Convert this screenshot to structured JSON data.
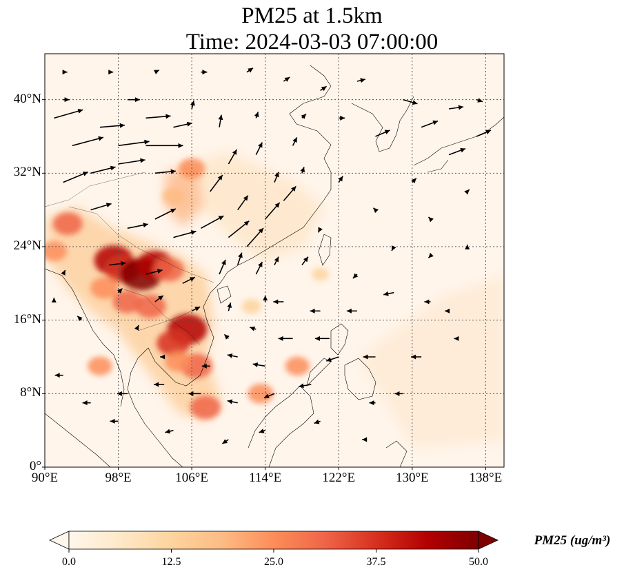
{
  "title": {
    "line1": "PM25 at 1.5km",
    "line2": "Time: 2024-03-03 07:00:00"
  },
  "map": {
    "lon_range": [
      90,
      140
    ],
    "lat_range": [
      0,
      45
    ],
    "lat_ticks": [
      {
        "value": 0,
        "label": "0°"
      },
      {
        "value": 8,
        "label": "8°N"
      },
      {
        "value": 16,
        "label": "16°N"
      },
      {
        "value": 24,
        "label": "24°N"
      },
      {
        "value": 32,
        "label": "32°N"
      },
      {
        "value": 40,
        "label": "40°N"
      }
    ],
    "lon_ticks": [
      {
        "value": 90,
        "label": "90°E"
      },
      {
        "value": 98,
        "label": "98°E"
      },
      {
        "value": 106,
        "label": "106°E"
      },
      {
        "value": 114,
        "label": "114°E"
      },
      {
        "value": 122,
        "label": "122°E"
      },
      {
        "value": 130,
        "label": "130°E"
      },
      {
        "value": 138,
        "label": "138°E"
      }
    ],
    "gridlines": "dotted",
    "background_color": "#fff5eb",
    "coastline_color": "#000000"
  },
  "colorbar": {
    "label": "PM25 (ug/m³)",
    "min": 0,
    "max": 50,
    "extend": "both",
    "colormap": "OrRd",
    "ticks": [
      "0.0",
      "12.5",
      "25.0",
      "37.5",
      "50.0"
    ],
    "colors": [
      "#fff7ec",
      "#fee8c8",
      "#fdd49e",
      "#fdbb84",
      "#fc8d59",
      "#ef6548",
      "#d7301f",
      "#b30000",
      "#7f0000"
    ]
  },
  "hotspots": [
    {
      "lon": 92.5,
      "lat": 26.5,
      "value": 30
    },
    {
      "lon": 97.5,
      "lat": 22.5,
      "value": 45
    },
    {
      "lon": 98.5,
      "lat": 21.5,
      "value": 38
    },
    {
      "lon": 100.5,
      "lat": 21.0,
      "value": 50
    },
    {
      "lon": 102.0,
      "lat": 22.0,
      "value": 42
    },
    {
      "lon": 103.5,
      "lat": 21.5,
      "value": 32
    },
    {
      "lon": 96.5,
      "lat": 19.5,
      "value": 28
    },
    {
      "lon": 99.0,
      "lat": 18.0,
      "value": 30
    },
    {
      "lon": 101.5,
      "lat": 17.5,
      "value": 32
    },
    {
      "lon": 105.5,
      "lat": 15.0,
      "value": 46
    },
    {
      "lon": 104.0,
      "lat": 13.5,
      "value": 36
    },
    {
      "lon": 106.5,
      "lat": 11.0,
      "value": 34
    },
    {
      "lon": 104.5,
      "lat": 11.5,
      "value": 25
    },
    {
      "lon": 107.5,
      "lat": 6.5,
      "value": 32
    },
    {
      "lon": 113.5,
      "lat": 8.0,
      "value": 24
    },
    {
      "lon": 117.5,
      "lat": 11.0,
      "value": 22
    },
    {
      "lon": 106.0,
      "lat": 32.5,
      "value": 25
    },
    {
      "lon": 104.0,
      "lat": 29.5,
      "value": 18
    },
    {
      "lon": 91.0,
      "lat": 23.5,
      "value": 24
    },
    {
      "lon": 96.0,
      "lat": 11.0,
      "value": 22
    },
    {
      "lon": 112.5,
      "lat": 17.5,
      "value": 14
    },
    {
      "lon": 120.0,
      "lat": 21.0,
      "value": 10
    }
  ],
  "wind_vectors": [
    {
      "lon": 91,
      "lat": 38,
      "u": 14,
      "v": 4
    },
    {
      "lon": 93,
      "lat": 35,
      "u": 15,
      "v": 4
    },
    {
      "lon": 96,
      "lat": 37,
      "u": 12,
      "v": 1
    },
    {
      "lon": 98,
      "lat": 35,
      "u": 15,
      "v": 2
    },
    {
      "lon": 101,
      "lat": 35,
      "u": 18,
      "v": 0
    },
    {
      "lon": 101,
      "lat": 38,
      "u": 12,
      "v": 1
    },
    {
      "lon": 104,
      "lat": 37,
      "u": 9,
      "v": 2
    },
    {
      "lon": 92,
      "lat": 31,
      "u": 12,
      "v": 5
    },
    {
      "lon": 95,
      "lat": 32,
      "u": 12,
      "v": 3
    },
    {
      "lon": 98,
      "lat": 33,
      "u": 13,
      "v": 2
    },
    {
      "lon": 102,
      "lat": 32,
      "u": 10,
      "v": 1
    },
    {
      "lon": 95,
      "lat": 28,
      "u": 10,
      "v": 3
    },
    {
      "lon": 99,
      "lat": 26,
      "u": 10,
      "v": 2
    },
    {
      "lon": 102,
      "lat": 27,
      "u": 10,
      "v": 5
    },
    {
      "lon": 104,
      "lat": 25,
      "u": 11,
      "v": 3
    },
    {
      "lon": 107,
      "lat": 26,
      "u": 11,
      "v": 6
    },
    {
      "lon": 110,
      "lat": 25,
      "u": 10,
      "v": 8
    },
    {
      "lon": 112,
      "lat": 24,
      "u": 8,
      "v": 9
    },
    {
      "lon": 114,
      "lat": 27,
      "u": 7,
      "v": 8
    },
    {
      "lon": 116,
      "lat": 29,
      "u": 6,
      "v": 7
    },
    {
      "lon": 108,
      "lat": 30,
      "u": 6,
      "v": 8
    },
    {
      "lon": 110,
      "lat": 33,
      "u": 4,
      "v": 7
    },
    {
      "lon": 113,
      "lat": 34,
      "u": 3,
      "v": 6
    },
    {
      "lon": 117,
      "lat": 35,
      "u": 2,
      "v": 4
    },
    {
      "lon": 109,
      "lat": 37,
      "u": 1,
      "v": 6
    },
    {
      "lon": 97,
      "lat": 22,
      "u": 8,
      "v": 1
    },
    {
      "lon": 101,
      "lat": 21,
      "u": 8,
      "v": 2
    },
    {
      "lon": 105,
      "lat": 20,
      "u": 6,
      "v": 3
    },
    {
      "lon": 109,
      "lat": 21,
      "u": 3,
      "v": 7
    },
    {
      "lon": 111,
      "lat": 22,
      "u": 2,
      "v": 6
    },
    {
      "lon": 113,
      "lat": 21,
      "u": 3,
      "v": 6
    },
    {
      "lon": 106,
      "lat": 17,
      "u": 4,
      "v": 2
    },
    {
      "lon": 110,
      "lat": 17,
      "u": 1,
      "v": 4
    },
    {
      "lon": 94,
      "lat": 16,
      "u": -2,
      "v": 2
    },
    {
      "lon": 100,
      "lat": 15,
      "u": 1,
      "v": 2
    },
    {
      "lon": 103,
      "lat": 12,
      "u": -2,
      "v": 0
    },
    {
      "lon": 108,
      "lat": 11,
      "u": -4,
      "v": 0
    },
    {
      "lon": 111,
      "lat": 12,
      "u": -5,
      "v": 1
    },
    {
      "lon": 114,
      "lat": 11,
      "u": -6,
      "v": 1
    },
    {
      "lon": 117,
      "lat": 14,
      "u": -7,
      "v": 0
    },
    {
      "lon": 121,
      "lat": 14,
      "u": -7,
      "v": 0
    },
    {
      "lon": 122,
      "lat": 12,
      "u": -6,
      "v": -2
    },
    {
      "lon": 119,
      "lat": 9,
      "u": -6,
      "v": -1
    },
    {
      "lon": 115,
      "lat": 8,
      "u": -5,
      "v": -2
    },
    {
      "lon": 111,
      "lat": 7,
      "u": -5,
      "v": 1
    },
    {
      "lon": 107,
      "lat": 8,
      "u": -6,
      "v": 0
    },
    {
      "lon": 103,
      "lat": 9,
      "u": -5,
      "v": 0
    },
    {
      "lon": 99,
      "lat": 8,
      "u": -5,
      "v": 0
    },
    {
      "lon": 95,
      "lat": 7,
      "u": -4,
      "v": 0
    },
    {
      "lon": 92,
      "lat": 10,
      "u": -4,
      "v": 0
    },
    {
      "lon": 98,
      "lat": 5,
      "u": -4,
      "v": 0
    },
    {
      "lon": 104,
      "lat": 4,
      "u": -4,
      "v": -1
    },
    {
      "lon": 110,
      "lat": 3,
      "u": -3,
      "v": -2
    },
    {
      "lon": 114,
      "lat": 4,
      "u": -3,
      "v": -1
    },
    {
      "lon": 120,
      "lat": 5,
      "u": -3,
      "v": -1
    },
    {
      "lon": 125,
      "lat": 3,
      "u": -2,
      "v": 0
    },
    {
      "lon": 129,
      "lat": 8,
      "u": -4,
      "v": 0
    },
    {
      "lon": 126,
      "lat": 12,
      "u": -6,
      "v": 0
    },
    {
      "lon": 124,
      "lat": 17,
      "u": -5,
      "v": 0
    },
    {
      "lon": 120,
      "lat": 17,
      "u": -5,
      "v": 0
    },
    {
      "lon": 116,
      "lat": 18,
      "u": -5,
      "v": 0
    },
    {
      "lon": 128,
      "lat": 19,
      "u": -5,
      "v": -1
    },
    {
      "lon": 132,
      "lat": 18,
      "u": -3,
      "v": 0
    },
    {
      "lon": 134,
      "lat": 17,
      "u": -2,
      "v": 0
    },
    {
      "lon": 124,
      "lat": 21,
      "u": -2,
      "v": -2
    },
    {
      "lon": 128,
      "lat": 24,
      "u": -1,
      "v": -2
    },
    {
      "lon": 132,
      "lat": 27,
      "u": -1,
      "v": 1
    },
    {
      "lon": 136,
      "lat": 30,
      "u": 1,
      "v": 1
    },
    {
      "lon": 130,
      "lat": 31,
      "u": 2,
      "v": 2
    },
    {
      "lon": 122,
      "lat": 31,
      "u": 2,
      "v": 3
    },
    {
      "lon": 120,
      "lat": 26,
      "u": -1,
      "v": -2
    },
    {
      "lon": 126,
      "lat": 28,
      "u": -1,
      "v": 1
    },
    {
      "lon": 126,
      "lat": 36,
      "u": 7,
      "v": 3
    },
    {
      "lon": 131,
      "lat": 37,
      "u": 8,
      "v": 3
    },
    {
      "lon": 134,
      "lat": 34,
      "u": 8,
      "v": 3
    },
    {
      "lon": 137,
      "lat": 36,
      "u": 7,
      "v": 3
    },
    {
      "lon": 129,
      "lat": 40,
      "u": 7,
      "v": -2
    },
    {
      "lon": 134,
      "lat": 39,
      "u": 7,
      "v": 1
    },
    {
      "lon": 137,
      "lat": 40,
      "u": 3,
      "v": -1
    },
    {
      "lon": 124,
      "lat": 42,
      "u": 4,
      "v": 1
    },
    {
      "lon": 120,
      "lat": 41,
      "u": 3,
      "v": 2
    },
    {
      "lon": 116,
      "lat": 42,
      "u": 3,
      "v": 2
    },
    {
      "lon": 112,
      "lat": 43,
      "u": 3,
      "v": 2
    },
    {
      "lon": 107,
      "lat": 43,
      "u": 3,
      "v": 0
    },
    {
      "lon": 102,
      "lat": 43,
      "u": 2,
      "v": 1
    },
    {
      "lon": 97,
      "lat": 43,
      "u": 2,
      "v": 0
    },
    {
      "lon": 92,
      "lat": 43,
      "u": 2,
      "v": 0
    },
    {
      "lon": 118,
      "lat": 38,
      "u": 2,
      "v": 2
    },
    {
      "lon": 122,
      "lat": 38,
      "u": 3,
      "v": 0
    },
    {
      "lon": 99,
      "lat": 40,
      "u": 6,
      "v": 0
    },
    {
      "lon": 92,
      "lat": 40,
      "u": 3,
      "v": 0
    },
    {
      "lon": 113,
      "lat": 38,
      "u": 1,
      "v": 3
    },
    {
      "lon": 106,
      "lat": 39,
      "u": 1,
      "v": 4
    },
    {
      "lon": 118,
      "lat": 32,
      "u": 1,
      "v": 3
    },
    {
      "lon": 115,
      "lat": 31,
      "u": 2,
      "v": 5
    },
    {
      "lon": 111,
      "lat": 28,
      "u": 5,
      "v": 7
    },
    {
      "lon": 92,
      "lat": 21,
      "u": 1,
      "v": 2
    },
    {
      "lon": 91,
      "lat": 18,
      "u": 0,
      "v": 2
    },
    {
      "lon": 98,
      "lat": 19,
      "u": 2,
      "v": 2
    },
    {
      "lon": 102,
      "lat": 18,
      "u": 4,
      "v": 3
    },
    {
      "lon": 115,
      "lat": 22,
      "u": 2,
      "v": 4
    },
    {
      "lon": 118,
      "lat": 22,
      "u": 3,
      "v": 4
    },
    {
      "lon": 114,
      "lat": 18,
      "u": 0,
      "v": 3
    },
    {
      "lon": 110,
      "lat": 14,
      "u": -2,
      "v": 2
    },
    {
      "lon": 113,
      "lat": 15,
      "u": -3,
      "v": 1
    },
    {
      "lon": 126,
      "lat": 7,
      "u": -3,
      "v": 0
    },
    {
      "lon": 131,
      "lat": 12,
      "u": -5,
      "v": 0
    },
    {
      "lon": 135,
      "lat": 14,
      "u": -2,
      "v": 0
    },
    {
      "lon": 136,
      "lat": 24,
      "u": 0,
      "v": 1
    },
    {
      "lon": 132,
      "lat": 23,
      "u": -1,
      "v": -1
    }
  ]
}
